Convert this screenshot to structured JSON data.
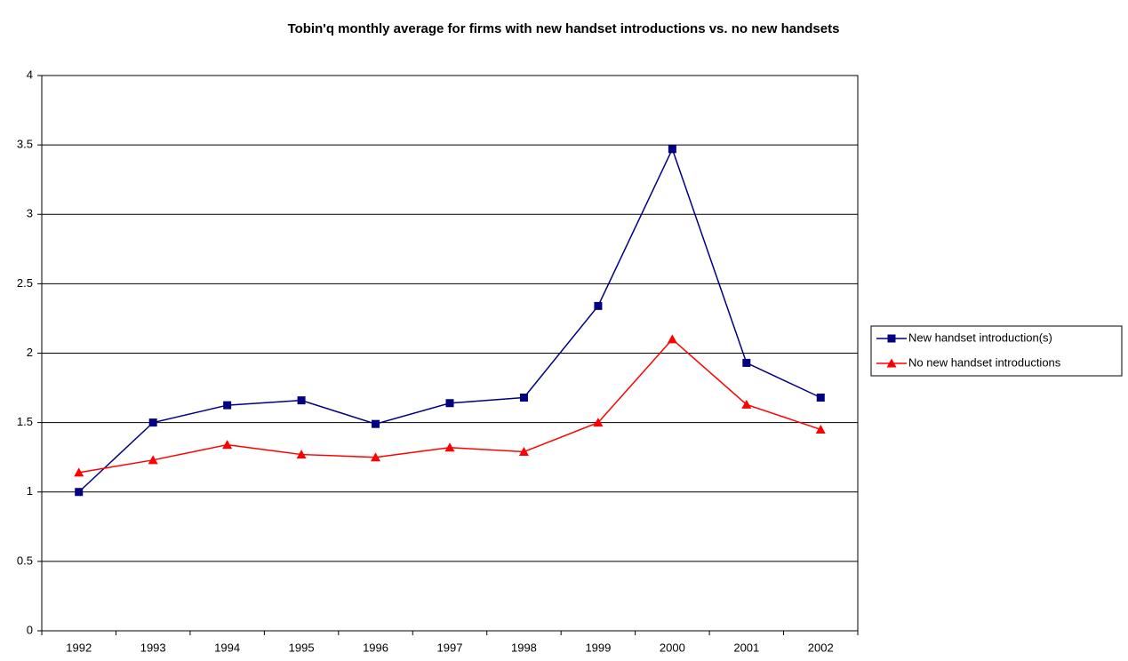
{
  "chart_data": {
    "type": "line",
    "title": "Tobin'q monthly average for firms with new handset introductions vs. no new handsets",
    "categories": [
      "1992",
      "1993",
      "1994",
      "1995",
      "1996",
      "1997",
      "1998",
      "1999",
      "2000",
      "2001",
      "2002"
    ],
    "series": [
      {
        "name": "New handset introduction(s)",
        "color": "#000080",
        "marker": "square",
        "values": [
          1.0,
          1.5,
          1.625,
          1.66,
          1.49,
          1.64,
          1.68,
          2.34,
          3.47,
          1.93,
          1.68
        ]
      },
      {
        "name": "No new handset introductions",
        "color": "#ff0000",
        "marker": "triangle",
        "values": [
          1.14,
          1.23,
          1.34,
          1.27,
          1.25,
          1.32,
          1.29,
          1.5,
          2.1,
          1.63,
          1.45
        ]
      }
    ],
    "ylim": [
      0,
      4
    ],
    "yticks": [
      0,
      0.5,
      1,
      1.5,
      2,
      2.5,
      3,
      3.5,
      4
    ],
    "grid": true,
    "legend": "right"
  }
}
